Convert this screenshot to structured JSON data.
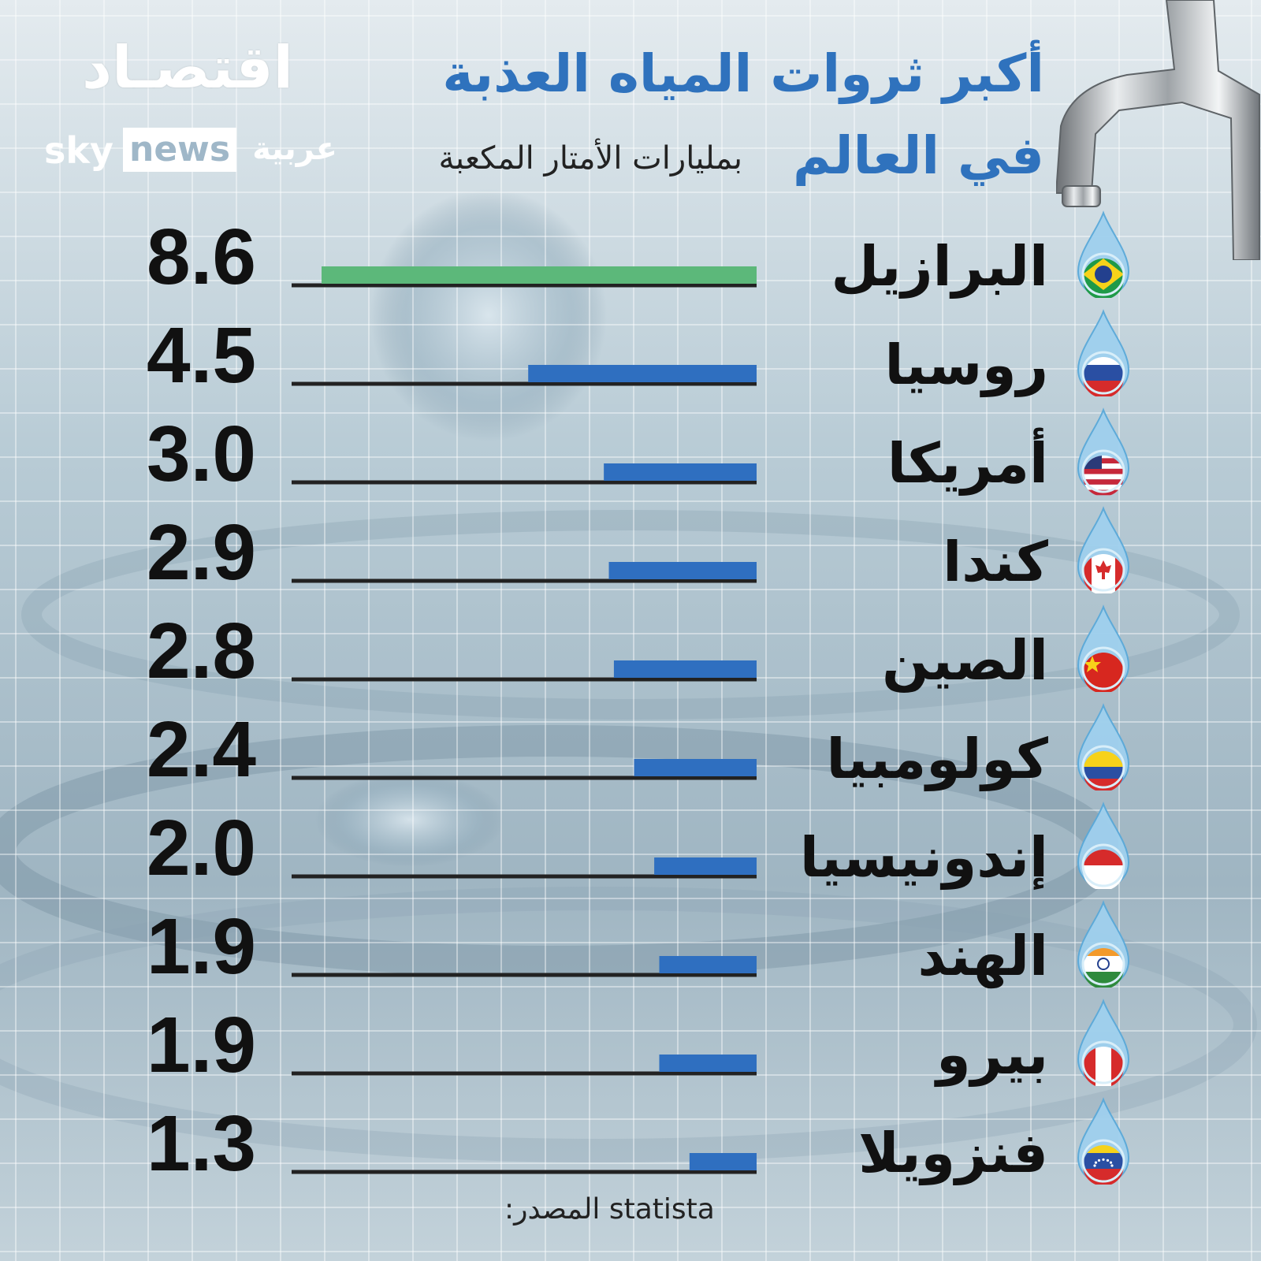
{
  "header": {
    "title_line1": "أكبر ثروات المياه العذبة",
    "title_line2": "في العالم",
    "subtitle": "بمليارات الأمتار المكعبة"
  },
  "logo": {
    "arabic_word": "اقتصـاد",
    "sky": "sky",
    "news": "news",
    "arabic": "عربية"
  },
  "source": {
    "label": "المصدر:",
    "value": "statista"
  },
  "colors": {
    "highlight_bar": "#5cb87a",
    "bar": "#2f6fc0",
    "baseline": "#222222",
    "title": "#2f72bd"
  },
  "chart_data": {
    "type": "bar",
    "orientation": "horizontal",
    "categories": [
      "البرازيل",
      "روسيا",
      "أمريكا",
      "كندا",
      "الصين",
      "كولومبيا",
      "إندونيسيا",
      "الهند",
      "بيرو",
      "فنزويلا"
    ],
    "values": [
      8.6,
      4.5,
      3.0,
      2.9,
      2.8,
      2.4,
      2.0,
      1.9,
      1.9,
      1.3
    ],
    "value_labels": [
      "8.6",
      "4.5",
      "3.0",
      "2.9",
      "2.8",
      "2.4",
      "2.0",
      "1.9",
      "1.9",
      "1.3"
    ],
    "flag_icons": [
      "brazil-flag-icon",
      "russia-flag-icon",
      "usa-flag-icon",
      "canada-flag-icon",
      "china-flag-icon",
      "colombia-flag-icon",
      "indonesia-flag-icon",
      "india-flag-icon",
      "peru-flag-icon",
      "venezuela-flag-icon"
    ],
    "highlight_index": 0,
    "xlim": [
      0,
      8.6
    ]
  }
}
